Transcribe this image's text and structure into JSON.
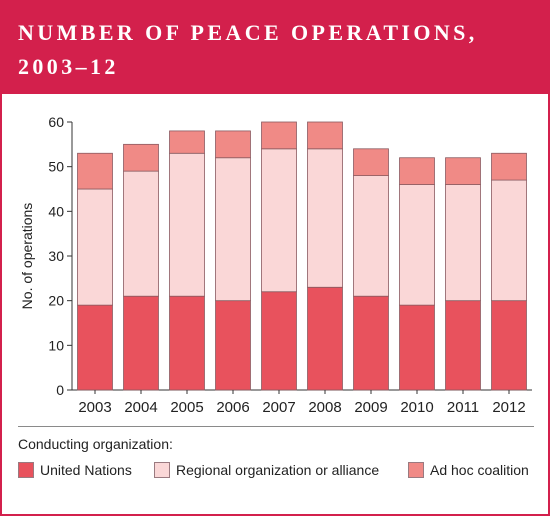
{
  "header": {
    "title_line1": "NUMBER OF PEACE OPERATIONS,",
    "title_line2": "2003–12"
  },
  "colors": {
    "brand": "#d3204c",
    "un": "#e8525d",
    "regional": "#fad7d7",
    "adhoc": "#f08a86"
  },
  "chart_data": {
    "type": "bar",
    "stacked": true,
    "categories": [
      "2003",
      "2004",
      "2005",
      "2006",
      "2007",
      "2008",
      "2009",
      "2010",
      "2011",
      "2012"
    ],
    "series": [
      {
        "name": "United Nations",
        "values": [
          19,
          21,
          21,
          20,
          22,
          23,
          21,
          19,
          20,
          20
        ]
      },
      {
        "name": "Regional organization or alliance",
        "values": [
          26,
          28,
          32,
          32,
          32,
          31,
          27,
          27,
          26,
          27
        ]
      },
      {
        "name": "Ad hoc coalition",
        "values": [
          8,
          6,
          5,
          6,
          6,
          6,
          6,
          6,
          6,
          6
        ]
      }
    ],
    "ylabel": "No. of operations",
    "ylim": [
      0,
      60
    ],
    "yticks": [
      0,
      10,
      20,
      30,
      40,
      50,
      60
    ],
    "grid": false,
    "legend_title": "Conducting organization:",
    "legend_position": "bottom"
  }
}
